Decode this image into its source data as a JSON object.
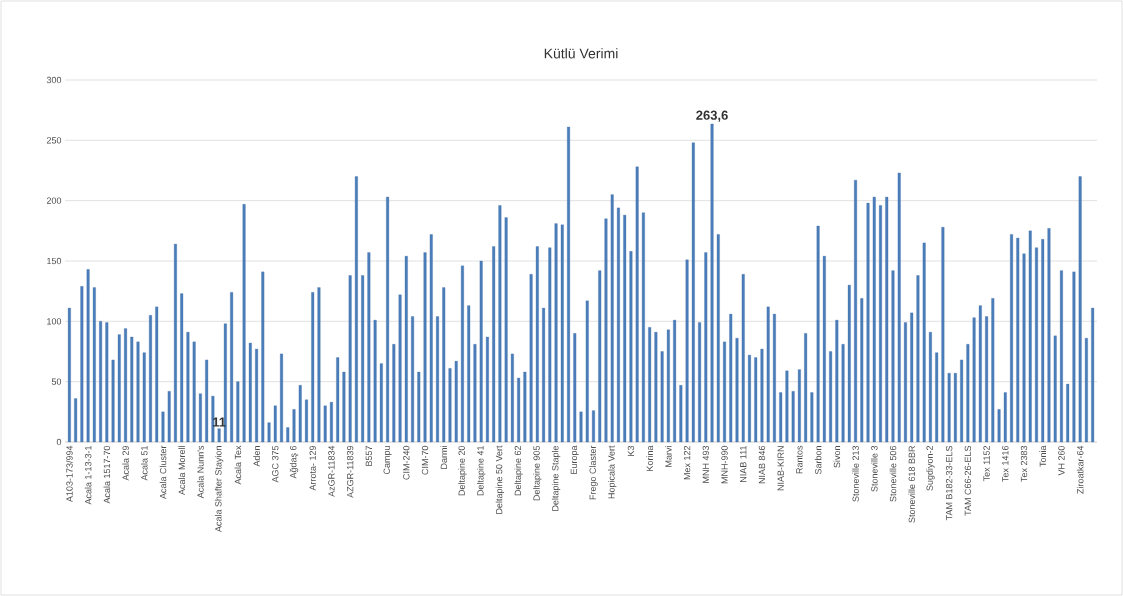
{
  "chart_data": {
    "type": "bar",
    "title": "Kütlü Verimi",
    "categories": [
      "A103-173/994",
      null,
      null,
      "Acala 1-13-3-1",
      null,
      null,
      "Acala 1517-70",
      null,
      null,
      "Acala 29",
      null,
      null,
      "Acala 51",
      null,
      null,
      "Acala Cluster",
      null,
      null,
      "Acala Morell",
      null,
      null,
      "Acala Nunn's",
      null,
      null,
      "Acala Shafter Stayion",
      null,
      null,
      "Acala Tex",
      null,
      null,
      "Aden",
      null,
      null,
      "AGC 375",
      null,
      null,
      "Ağdaş 6",
      null,
      null,
      "Arrota- 129",
      null,
      null,
      "AzGR-11834",
      null,
      null,
      "AZGR-11839",
      null,
      null,
      "B557",
      null,
      null,
      "Campu",
      null,
      null,
      "CIM-240",
      null,
      null,
      "CIM-70",
      null,
      null,
      "Darmi",
      null,
      null,
      "Deltapine 20",
      null,
      null,
      "Deltapine 41",
      null,
      null,
      "Deltapine 50 Vert",
      null,
      null,
      "Deltapine 62",
      null,
      null,
      "Deltapine 905",
      null,
      null,
      "Deltapine Staple",
      null,
      null,
      "Europa",
      null,
      null,
      "Frego Claster",
      null,
      null,
      "Hopicala Vert",
      null,
      null,
      "K3",
      null,
      null,
      "Korina",
      null,
      null,
      "Marvi",
      null,
      null,
      "Mex 122",
      null,
      null,
      "MNH 493",
      null,
      null,
      "MNH-990",
      null,
      null,
      "NIAB 111",
      null,
      null,
      "NIAB 846",
      null,
      null,
      "NIAB-KIRN",
      null,
      null,
      "Rantos",
      null,
      null,
      "Sarbon",
      null,
      null,
      "Sivon",
      null,
      null,
      "Stoneville 213",
      null,
      null,
      "Stoneville 3",
      null,
      null,
      "Stoneville 506",
      null,
      null,
      "Stoneville 618 BBR",
      null,
      null,
      "Sugdiyon-2",
      null,
      null,
      "TAM B182-33-ELS",
      null,
      null,
      "TAM C66-26-ELS",
      null,
      null,
      "Tex 1152",
      null,
      null,
      "Tex 1416",
      null,
      null,
      "Tex 2383",
      null,
      null,
      "Tonia",
      null,
      null,
      "VH 260",
      null,
      null,
      "Ziroatkar-64",
      null,
      null
    ],
    "values": [
      111,
      36,
      129,
      143,
      128,
      100,
      99,
      68,
      89,
      94,
      87,
      83,
      74,
      105,
      112,
      25,
      42,
      164,
      123,
      91,
      83,
      40,
      68,
      38,
      11,
      98,
      124,
      50,
      197,
      82,
      77,
      141,
      16,
      30,
      73,
      12,
      27,
      47,
      35,
      124,
      128,
      30,
      33,
      70,
      58,
      138,
      220,
      138,
      157,
      101,
      65,
      203,
      81,
      122,
      154,
      104,
      58,
      157,
      172,
      104,
      128,
      61,
      67,
      146,
      113,
      81,
      150,
      87,
      162,
      196,
      186,
      73,
      53,
      58,
      139,
      162,
      111,
      161,
      181,
      180,
      261,
      90,
      25,
      117,
      26,
      142,
      185,
      205,
      194,
      188,
      158,
      228,
      190,
      95,
      91,
      75,
      93,
      101,
      47,
      151,
      248,
      99,
      157,
      263.6,
      172,
      83,
      106,
      86,
      139,
      72,
      70,
      77,
      112,
      106,
      41,
      59,
      42,
      60,
      90,
      41,
      179,
      154,
      75,
      101,
      81,
      130,
      217,
      119,
      198,
      203,
      196,
      203,
      142,
      223,
      99,
      107,
      138,
      165,
      91,
      74,
      178,
      57,
      57,
      68,
      81,
      103,
      113,
      104,
      119,
      27,
      41,
      172,
      169,
      156,
      175,
      161,
      168,
      177,
      88,
      142,
      48,
      141,
      220,
      86,
      111
    ],
    "value_labels": [
      null,
      null,
      null,
      null,
      null,
      null,
      null,
      null,
      null,
      null,
      null,
      null,
      null,
      null,
      null,
      null,
      null,
      null,
      null,
      null,
      null,
      null,
      null,
      null,
      "11",
      null,
      null,
      null,
      null,
      null,
      null,
      null,
      null,
      null,
      null,
      null,
      null,
      null,
      null,
      null,
      null,
      null,
      null,
      null,
      null,
      null,
      null,
      null,
      null,
      null,
      null,
      null,
      null,
      null,
      null,
      null,
      null,
      null,
      null,
      null,
      null,
      null,
      null,
      null,
      null,
      null,
      null,
      null,
      null,
      null,
      null,
      null,
      null,
      null,
      null,
      null,
      null,
      null,
      null,
      null,
      null,
      null,
      null,
      null,
      null,
      null,
      null,
      null,
      null,
      null,
      null,
      null,
      null,
      null,
      null,
      null,
      null,
      null,
      null,
      null,
      null,
      null,
      null,
      "263,6",
      null,
      null,
      null,
      null,
      null,
      null,
      null,
      null,
      null,
      null,
      null,
      null,
      null,
      null,
      null,
      null,
      null,
      null,
      null,
      null,
      null,
      null,
      null,
      null,
      null,
      null,
      null,
      null,
      null,
      null,
      null,
      null,
      null,
      null,
      null,
      null,
      null,
      null,
      null,
      null,
      null,
      null,
      null,
      null,
      null,
      null,
      null,
      null,
      null,
      null,
      null,
      null,
      null,
      null,
      null,
      null,
      null,
      null,
      null,
      null,
      null
    ],
    "color": "#4a7ebb",
    "ylim": [
      0,
      300
    ],
    "yticks": [
      0,
      50,
      100,
      150,
      200,
      250,
      300
    ],
    "grid": "y"
  }
}
